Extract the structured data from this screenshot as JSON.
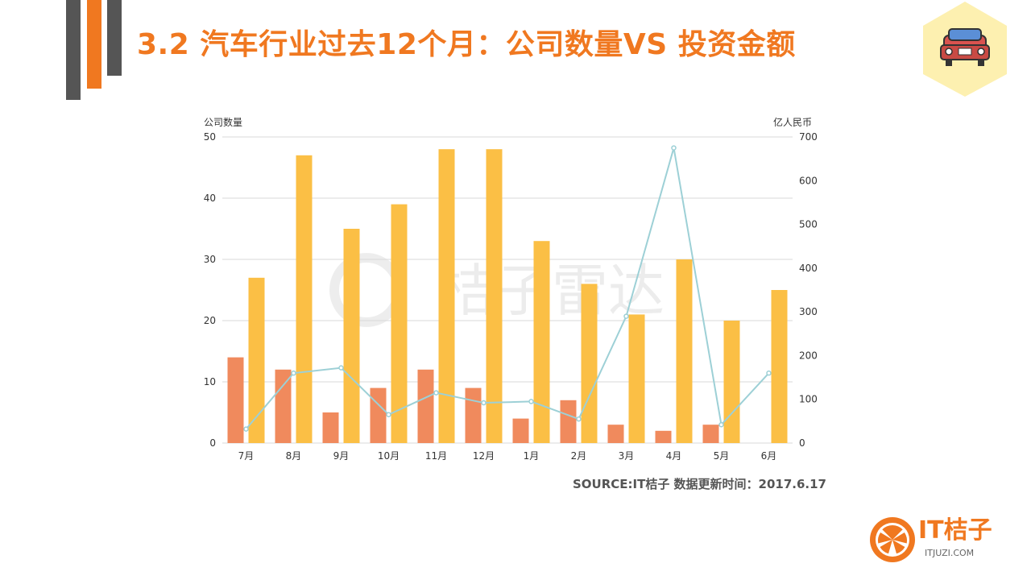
{
  "slide": {
    "title": "3.2  汽车行业过去12个月：公司数量VS 投资金额",
    "source": "SOURCE:IT桔子 数据更新时间：2017.6.17",
    "brand_name": "IT桔子",
    "brand_url": "ITJUZI.COM",
    "watermark": "桔子雷达",
    "car_icon": "car-icon",
    "colors": {
      "accent": "#f07820",
      "dark_bar": "#555555",
      "hexagon": "#fdf0b0"
    }
  },
  "chart_data": {
    "type": "bar",
    "categories": [
      "7月",
      "8月",
      "9月",
      "10月",
      "11月",
      "12月",
      "1月",
      "2月",
      "3月",
      "4月",
      "5月",
      "6月"
    ],
    "y_left_label": "公司数量",
    "y_right_label": "亿人民币",
    "y_left_range": [
      0,
      50
    ],
    "y_left_ticks": [
      0,
      10,
      20,
      30,
      40,
      50
    ],
    "y_right_range": [
      0,
      700
    ],
    "y_right_ticks": [
      0,
      100,
      200,
      300,
      400,
      500,
      600,
      700
    ],
    "grid": true,
    "series": [
      {
        "type": "bar",
        "axis": "left",
        "color": "#f08a5d",
        "values": [
          14,
          12,
          5,
          9,
          12,
          9,
          4,
          7,
          3,
          2,
          3,
          0
        ]
      },
      {
        "type": "bar",
        "axis": "left",
        "color": "#fbbf45",
        "values": [
          27,
          47,
          35,
          39,
          48,
          48,
          33,
          26,
          21,
          30,
          20,
          25
        ]
      },
      {
        "type": "line",
        "axis": "right",
        "color": "#9dd0d6",
        "values": [
          32,
          160,
          172,
          65,
          115,
          92,
          95,
          55,
          290,
          675,
          42,
          160
        ]
      }
    ]
  }
}
